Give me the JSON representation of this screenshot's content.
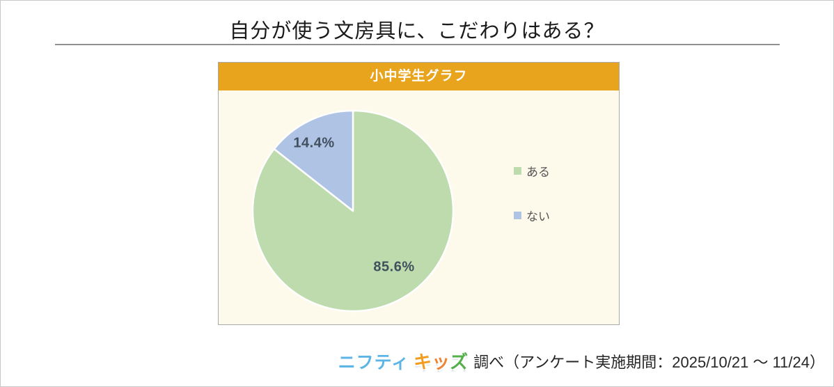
{
  "title": "自分が使う文房具に、こだわりはある？",
  "panel": {
    "header": "小中学生グラフ",
    "header_bg": "#e8a41c",
    "body_bg": "#fdfaeb"
  },
  "chart_data": {
    "type": "pie",
    "title": "小中学生グラフ",
    "question": "自分が使う文房具に、こだわりはある？",
    "categories": [
      "ある",
      "ない"
    ],
    "values": [
      85.6,
      14.4
    ],
    "unit": "%",
    "value_labels": [
      "85.6%",
      "14.4%"
    ],
    "colors": [
      "#bddbad",
      "#afc3e5"
    ],
    "start_angle_deg": 0,
    "direction": "clockwise",
    "legend_position": "right",
    "slice_border_color": "#ffffff"
  },
  "footer": {
    "logo_nifty": "ニフティ",
    "logo_nifty_color": "#5cb5e5",
    "logo_kids_chars": [
      {
        "char": "キ",
        "color": "#f39c1f"
      },
      {
        "char": "ッ",
        "color": "#ef8432"
      },
      {
        "char": "ズ",
        "color": "#55b04b"
      }
    ],
    "note": "調べ（アンケート実施期間：2025/10/21 ～ 11/24）"
  }
}
